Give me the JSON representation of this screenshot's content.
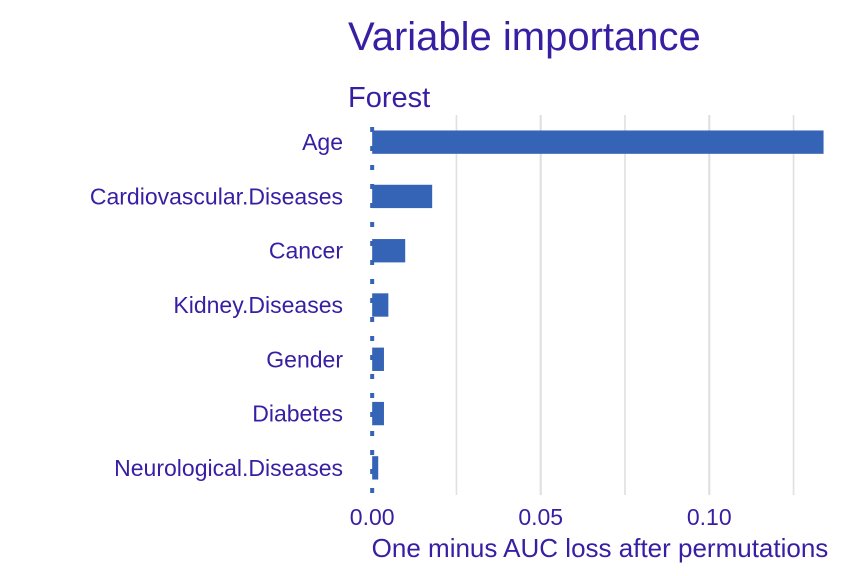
{
  "chart_data": {
    "type": "bar",
    "title": "Variable importance",
    "subtitle": "Forest",
    "xlabel": "One minus AUC loss after permutations",
    "ylabel": "",
    "categories": [
      "Age",
      "Cardiovascular.Diseases",
      "Cancer",
      "Kidney.Diseases",
      "Gender",
      "Diabetes",
      "Neurological.Diseases"
    ],
    "values": [
      0.1339,
      0.0178,
      0.0098,
      0.0048,
      0.0035,
      0.0035,
      0.0018
    ],
    "xlim": [
      -0.0045,
      0.137
    ],
    "xticks": [
      0.0,
      0.05,
      0.1
    ],
    "xtick_labels": [
      "0.00",
      "0.05",
      "0.10"
    ],
    "orientation": "horizontal",
    "grid": true,
    "bar_color": "#3563b5",
    "text_color": "#371ea3",
    "grid_color": "#e0e0e0"
  }
}
